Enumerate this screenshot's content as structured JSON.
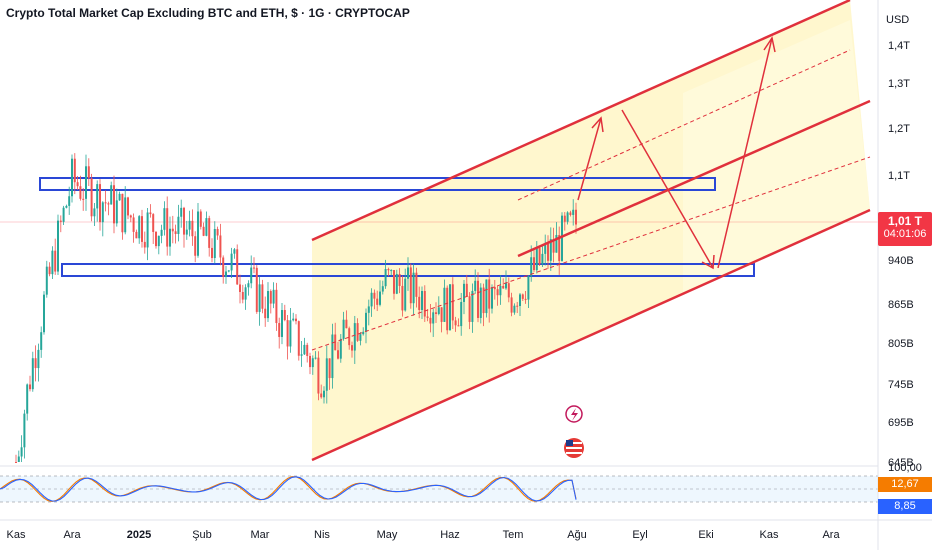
{
  "header": {
    "title": "Crypto Total Market Cap Excluding BTC and ETH, $ · 1G · CRYPTOCAP",
    "currency": "USD"
  },
  "price_tag": {
    "value": "1,01 T",
    "countdown": "04:01:06",
    "color": "#f23645"
  },
  "oscillator": {
    "top_label": "100,00",
    "k_value": "12,67",
    "d_value": "8,85",
    "k_color": "#f57c00",
    "d_color": "#2962ff"
  },
  "icons": [
    "lightning-icon",
    "us-flag-icon"
  ],
  "colors": {
    "up": "#26a69a",
    "down": "#ef5350",
    "channel": "#e0303c",
    "zone": "#2a47d6",
    "channel_fill": "#fff6c6"
  },
  "chart_data": {
    "type": "candlestick",
    "title": "Crypto Total Market Cap Excluding BTC and ETH, $ · 1G · CRYPTOCAP",
    "y_unit": "$",
    "y_ticks": [
      "1,4T",
      "1,3T",
      "1,2T",
      "1,1T",
      "1,01T",
      "940B",
      "865B",
      "805B",
      "745B",
      "695B",
      "645B"
    ],
    "x_ticks": [
      "Kas",
      "Ara",
      "2025",
      "Şub",
      "Mar",
      "Nis",
      "May",
      "Haz",
      "Tem",
      "Ağu",
      "Eyl",
      "Eki",
      "Kas",
      "Ara"
    ],
    "close_path": [
      [
        "Kas",
        645
      ],
      [
        "Ara",
        1090
      ],
      [
        "2025",
        1010
      ],
      [
        "Şub",
        985
      ],
      [
        "Mar",
        880
      ],
      [
        "Nis",
        760
      ],
      [
        "May",
        905
      ],
      [
        "Haz",
        860
      ],
      [
        "Tem",
        880
      ],
      [
        "Ağu",
        1010
      ]
    ],
    "last_value": "1,01T",
    "resistance_zone": [
      1080,
      1100
    ],
    "support_zone": [
      900,
      918
    ],
    "channel": "ascending, Nis to Ara",
    "projection": "up to ~1,25T, pullback to ~940B, then up to ~1,4T",
    "oscillator": {
      "name": "Stochastic RSI",
      "range": [
        0,
        100
      ],
      "k": 12.67,
      "d": 8.85
    }
  }
}
